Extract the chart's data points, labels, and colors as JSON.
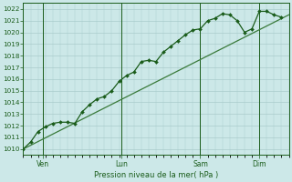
{
  "title": "",
  "xlabel": "Pression niveau de la mer( hPa )",
  "bg_color": "#cce8e8",
  "grid_color": "#aacccc",
  "line_color": "#1a5c1a",
  "marker_color": "#1a5c1a",
  "trend_color": "#3a7a3a",
  "ylim": [
    1009.5,
    1022.5
  ],
  "yticks": [
    1010,
    1011,
    1012,
    1013,
    1014,
    1015,
    1016,
    1017,
    1018,
    1019,
    1020,
    1021,
    1022
  ],
  "xtick_labels": [
    "Ven",
    "Lun",
    "Sam",
    "Dim"
  ],
  "xtick_positions": [
    8,
    40,
    72,
    96
  ],
  "vline_positions": [
    8,
    40,
    72,
    96
  ],
  "xlim": [
    0,
    108
  ],
  "line_data_x": [
    0,
    3,
    6,
    9,
    12,
    15,
    18,
    21,
    24,
    27,
    30,
    33,
    36,
    39,
    42,
    45,
    48,
    51,
    54,
    57,
    60,
    63,
    66,
    69,
    72,
    75,
    78,
    81,
    84,
    87,
    90,
    93,
    96,
    99,
    102,
    105
  ],
  "line_data_y": [
    1010.0,
    1010.6,
    1011.5,
    1011.9,
    1012.2,
    1012.3,
    1012.3,
    1012.2,
    1013.2,
    1013.8,
    1014.3,
    1014.5,
    1015.0,
    1015.8,
    1016.3,
    1016.6,
    1017.5,
    1017.6,
    1017.5,
    1018.3,
    1018.8,
    1019.3,
    1019.8,
    1020.2,
    1020.3,
    1021.0,
    1021.2,
    1021.6,
    1021.5,
    1021.0,
    1020.0,
    1020.3,
    1021.8,
    1021.8,
    1021.5,
    1021.3
  ],
  "trend_x": [
    0,
    108
  ],
  "trend_y": [
    1010.0,
    1021.5
  ]
}
